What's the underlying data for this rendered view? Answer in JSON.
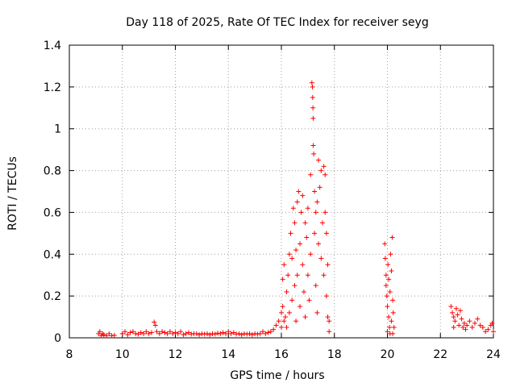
{
  "chart_data": {
    "type": "scatter",
    "title": "Day 118 of 2025, Rate Of TEC Index for receiver seyg",
    "xlabel": "GPS time / hours",
    "ylabel": "ROTI / TECUs",
    "xlim": [
      8,
      24
    ],
    "ylim": [
      0,
      1.4
    ],
    "grid": true,
    "marker": "plus",
    "marker_color": "#ff0000",
    "x_ticks": [
      8,
      10,
      12,
      14,
      16,
      18,
      20,
      22,
      24
    ],
    "x_tick_labels": [
      "8",
      "10",
      "12",
      "14",
      "16",
      "18",
      "20",
      "22",
      "24"
    ],
    "y_ticks": [
      0,
      0.2,
      0.4,
      0.6,
      0.8,
      1.0,
      1.2,
      1.4
    ],
    "y_tick_labels": [
      "0",
      "0.2",
      "0.4",
      "0.6",
      "0.8",
      "1",
      "1.2",
      "1.4"
    ],
    "series": [
      {
        "name": "ROTI",
        "points": [
          [
            9.1,
            0.02
          ],
          [
            9.15,
            0.03
          ],
          [
            9.2,
            0.01
          ],
          [
            9.25,
            0.02
          ],
          [
            9.3,
            0.015
          ],
          [
            9.4,
            0.01
          ],
          [
            9.5,
            0.02
          ],
          [
            9.6,
            0.01
          ],
          [
            9.7,
            0.012
          ],
          [
            10.0,
            0.02
          ],
          [
            10.1,
            0.03
          ],
          [
            10.2,
            0.015
          ],
          [
            10.3,
            0.025
          ],
          [
            10.4,
            0.03
          ],
          [
            10.5,
            0.02
          ],
          [
            10.6,
            0.018
          ],
          [
            10.7,
            0.025
          ],
          [
            10.8,
            0.02
          ],
          [
            10.9,
            0.03
          ],
          [
            11.0,
            0.02
          ],
          [
            11.1,
            0.025
          ],
          [
            11.2,
            0.075
          ],
          [
            11.25,
            0.06
          ],
          [
            11.3,
            0.03
          ],
          [
            11.4,
            0.02
          ],
          [
            11.5,
            0.03
          ],
          [
            11.6,
            0.025
          ],
          [
            11.7,
            0.02
          ],
          [
            11.8,
            0.03
          ],
          [
            11.9,
            0.02
          ],
          [
            12.0,
            0.025
          ],
          [
            12.1,
            0.02
          ],
          [
            12.2,
            0.03
          ],
          [
            12.3,
            0.015
          ],
          [
            12.4,
            0.02
          ],
          [
            12.5,
            0.025
          ],
          [
            12.6,
            0.018
          ],
          [
            12.7,
            0.02
          ],
          [
            12.8,
            0.02
          ],
          [
            12.9,
            0.015
          ],
          [
            13.0,
            0.02
          ],
          [
            13.1,
            0.018
          ],
          [
            13.2,
            0.02
          ],
          [
            13.3,
            0.015
          ],
          [
            13.4,
            0.02
          ],
          [
            13.5,
            0.018
          ],
          [
            13.6,
            0.022
          ],
          [
            13.7,
            0.02
          ],
          [
            13.8,
            0.025
          ],
          [
            13.9,
            0.02
          ],
          [
            14.0,
            0.03
          ],
          [
            14.1,
            0.02
          ],
          [
            14.2,
            0.025
          ],
          [
            14.3,
            0.018
          ],
          [
            14.4,
            0.02
          ],
          [
            14.5,
            0.015
          ],
          [
            14.6,
            0.02
          ],
          [
            14.7,
            0.018
          ],
          [
            14.8,
            0.02
          ],
          [
            14.9,
            0.015
          ],
          [
            15.0,
            0.02
          ],
          [
            15.1,
            0.018
          ],
          [
            15.2,
            0.02
          ],
          [
            15.3,
            0.03
          ],
          [
            15.4,
            0.02
          ],
          [
            15.5,
            0.025
          ],
          [
            15.6,
            0.03
          ],
          [
            15.7,
            0.04
          ],
          [
            15.8,
            0.06
          ],
          [
            15.9,
            0.08
          ],
          [
            16.0,
            0.12
          ],
          [
            16.0,
            0.05
          ],
          [
            16.05,
            0.28
          ],
          [
            16.05,
            0.15
          ],
          [
            16.1,
            0.08
          ],
          [
            16.1,
            0.35
          ],
          [
            16.15,
            0.1
          ],
          [
            16.2,
            0.05
          ],
          [
            16.2,
            0.22
          ],
          [
            16.25,
            0.3
          ],
          [
            16.3,
            0.4
          ],
          [
            16.3,
            0.12
          ],
          [
            16.35,
            0.5
          ],
          [
            16.4,
            0.18
          ],
          [
            16.4,
            0.38
          ],
          [
            16.45,
            0.62
          ],
          [
            16.5,
            0.55
          ],
          [
            16.5,
            0.25
          ],
          [
            16.55,
            0.08
          ],
          [
            16.55,
            0.42
          ],
          [
            16.6,
            0.65
          ],
          [
            16.6,
            0.3
          ],
          [
            16.65,
            0.7
          ],
          [
            16.7,
            0.45
          ],
          [
            16.7,
            0.15
          ],
          [
            16.75,
            0.6
          ],
          [
            16.8,
            0.68
          ],
          [
            16.8,
            0.35
          ],
          [
            16.85,
            0.22
          ],
          [
            16.9,
            0.55
          ],
          [
            16.9,
            0.1
          ],
          [
            16.95,
            0.48
          ],
          [
            17.0,
            0.62
          ],
          [
            17.0,
            0.3
          ],
          [
            17.05,
            0.18
          ],
          [
            17.1,
            0.78
          ],
          [
            17.1,
            0.4
          ],
          [
            17.15,
            1.22
          ],
          [
            17.17,
            1.2
          ],
          [
            17.18,
            1.15
          ],
          [
            17.19,
            1.1
          ],
          [
            17.2,
            1.05
          ],
          [
            17.2,
            0.92
          ],
          [
            17.22,
            0.88
          ],
          [
            17.25,
            0.7
          ],
          [
            17.25,
            0.5
          ],
          [
            17.3,
            0.6
          ],
          [
            17.3,
            0.25
          ],
          [
            17.35,
            0.65
          ],
          [
            17.35,
            0.12
          ],
          [
            17.4,
            0.85
          ],
          [
            17.4,
            0.45
          ],
          [
            17.45,
            0.72
          ],
          [
            17.5,
            0.8
          ],
          [
            17.5,
            0.38
          ],
          [
            17.55,
            0.55
          ],
          [
            17.6,
            0.82
          ],
          [
            17.6,
            0.3
          ],
          [
            17.65,
            0.78
          ],
          [
            17.65,
            0.6
          ],
          [
            17.7,
            0.5
          ],
          [
            17.7,
            0.2
          ],
          [
            17.75,
            0.35
          ],
          [
            17.75,
            0.1
          ],
          [
            17.8,
            0.08
          ],
          [
            17.8,
            0.03
          ],
          [
            19.9,
            0.45
          ],
          [
            19.92,
            0.38
          ],
          [
            19.95,
            0.3
          ],
          [
            19.95,
            0.25
          ],
          [
            19.98,
            0.2
          ],
          [
            20.0,
            0.15
          ],
          [
            20.0,
            0.03
          ],
          [
            20.02,
            0.35
          ],
          [
            20.05,
            0.28
          ],
          [
            20.05,
            0.1
          ],
          [
            20.08,
            0.05
          ],
          [
            20.1,
            0.22
          ],
          [
            20.1,
            0.02
          ],
          [
            20.12,
            0.4
          ],
          [
            20.15,
            0.32
          ],
          [
            20.15,
            0.08
          ],
          [
            20.18,
            0.48
          ],
          [
            20.2,
            0.18
          ],
          [
            20.2,
            0.02
          ],
          [
            20.22,
            0.12
          ],
          [
            20.25,
            0.05
          ],
          [
            22.4,
            0.15
          ],
          [
            22.45,
            0.12
          ],
          [
            22.5,
            0.1
          ],
          [
            22.5,
            0.05
          ],
          [
            22.55,
            0.08
          ],
          [
            22.6,
            0.14
          ],
          [
            22.65,
            0.11
          ],
          [
            22.7,
            0.06
          ],
          [
            22.75,
            0.13
          ],
          [
            22.8,
            0.09
          ],
          [
            22.85,
            0.05
          ],
          [
            22.9,
            0.07
          ],
          [
            22.95,
            0.04
          ],
          [
            23.0,
            0.06
          ],
          [
            23.1,
            0.08
          ],
          [
            23.2,
            0.05
          ],
          [
            23.3,
            0.07
          ],
          [
            23.4,
            0.09
          ],
          [
            23.5,
            0.06
          ],
          [
            23.6,
            0.05
          ],
          [
            23.7,
            0.03
          ],
          [
            23.8,
            0.04
          ],
          [
            23.9,
            0.06
          ],
          [
            23.95,
            0.07
          ],
          [
            24.0,
            0.03
          ]
        ]
      }
    ]
  }
}
